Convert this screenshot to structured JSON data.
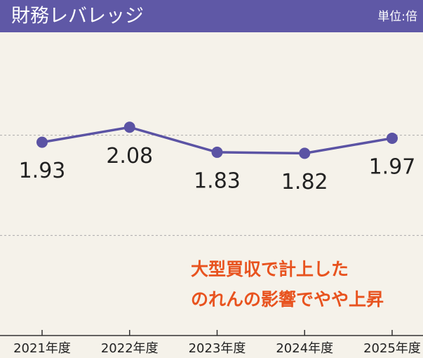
{
  "chart_data": {
    "type": "line",
    "title": "財務レバレッジ",
    "unit_label": "単位:倍",
    "categories": [
      "2021年度",
      "2022年度",
      "2023年度",
      "2024年度",
      "2025年度"
    ],
    "values": [
      1.93,
      2.08,
      1.83,
      1.82,
      1.97
    ],
    "color": "#5b53a4",
    "ylim": [
      0,
      3
    ],
    "yticks": [
      1,
      2
    ],
    "grid": true,
    "annotation": [
      "大型買収で計上した",
      "のれんの影響でやや上昇"
    ],
    "annotation_color": "#e8531f"
  }
}
